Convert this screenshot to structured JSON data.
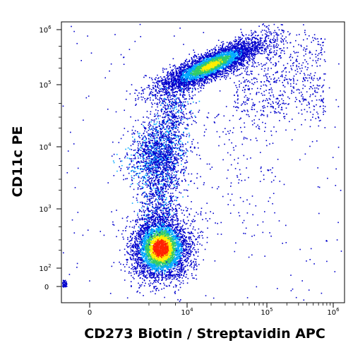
{
  "chart_data": {
    "type": "density-scatter",
    "xlabel": "CD273 Biotin / Streptavidin APC",
    "ylabel": "CD11c PE",
    "x_scale": "biexponential",
    "y_scale": "biexponential",
    "xlim": [
      -300,
      1000000
    ],
    "ylim": [
      -150,
      1300000
    ],
    "x_ticks": [
      {
        "value": 0,
        "base": "0",
        "exp": ""
      },
      {
        "value": 10000,
        "base": "10",
        "exp": "4"
      },
      {
        "value": 100000,
        "base": "10",
        "exp": "5"
      },
      {
        "value": 1000000,
        "base": "10",
        "exp": "6"
      }
    ],
    "y_ticks": [
      {
        "value": 0,
        "base": "0",
        "exp": ""
      },
      {
        "value": 100,
        "base": "10",
        "exp": "2"
      },
      {
        "value": 1000,
        "base": "10",
        "exp": "3"
      },
      {
        "value": 10000,
        "base": "10",
        "exp": "4"
      },
      {
        "value": 100000,
        "base": "10",
        "exp": "5"
      },
      {
        "value": 1000000,
        "base": "10",
        "exp": "6"
      }
    ],
    "populations": [
      {
        "name": "",
        "center_x": 2000,
        "center_y": 220,
        "relative_density": 1.0
      },
      {
        "name": "",
        "center_x": 13000,
        "center_y": 180000,
        "relative_density": 0.7
      },
      {
        "name": "",
        "center_x": 1200,
        "center_y": 7000,
        "relative_density": 0.25
      }
    ],
    "colors": {
      "low": "#0000cc",
      "mid_low": "#00aaff",
      "mid": "#33cc66",
      "mid_high": "#ffee00",
      "high": "#ff2200"
    },
    "grid": false,
    "legend": "none"
  }
}
